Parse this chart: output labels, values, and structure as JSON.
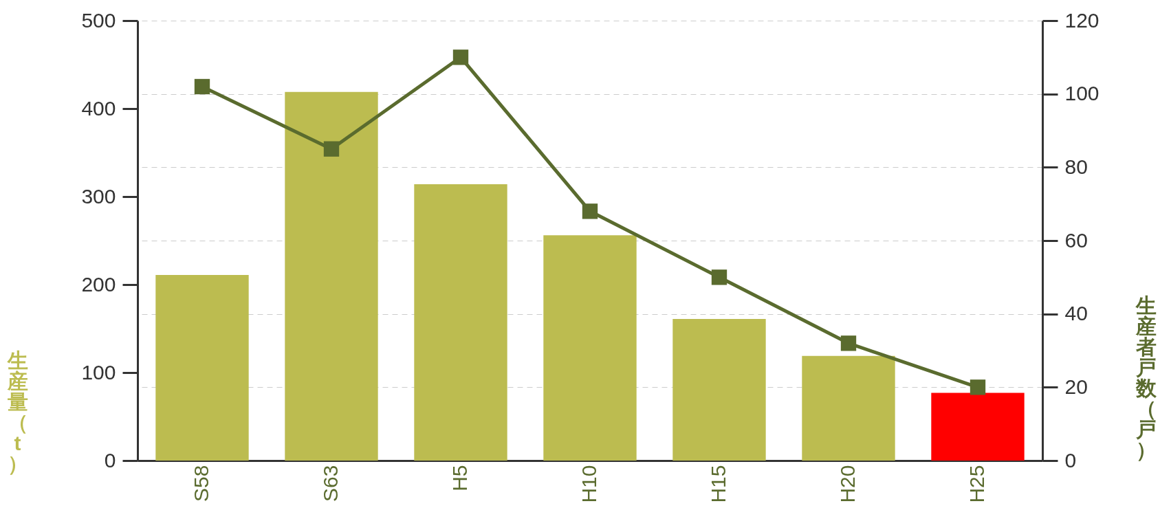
{
  "chart_data": {
    "type": "bar",
    "ylabel": "生産量（t）",
    "y2label": "生産者戸数（戸）",
    "categories": [
      "S58",
      "S63",
      "H5",
      "H10",
      "H15",
      "H20",
      "H25"
    ],
    "series": [
      {
        "colors": [
          "#bcbc50",
          "#bcbc50",
          "#bcbc50",
          "#bcbc50",
          "#bcbc50",
          "#bcbc50",
          "#ff0000"
        ],
        "values": [
          211,
          419,
          314,
          256,
          161,
          119,
          77
        ]
      },
      {
        "type": "line",
        "axis": "y2",
        "color": "#5a6b2e",
        "marker": "square",
        "values": [
          102,
          85,
          110,
          68,
          50,
          32,
          20
        ]
      }
    ],
    "ylim": [
      0,
      500
    ],
    "yticks": [
      0,
      100,
      200,
      300,
      400,
      500
    ],
    "y2lim": [
      0,
      120
    ],
    "y2ticks": [
      0,
      20,
      40,
      60,
      80,
      100,
      120
    ],
    "grid": "y"
  }
}
